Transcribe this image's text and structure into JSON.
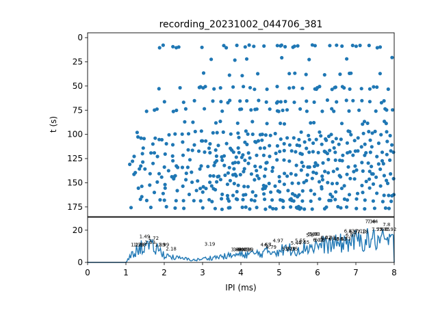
{
  "chart_data": [
    {
      "type": "scatter",
      "title": "recording_20231002_044706_381",
      "ylabel": "t (s)",
      "xlim": [
        0,
        8
      ],
      "ylim": [
        185,
        -5
      ],
      "y_inverted": true,
      "yticks": [
        0,
        25,
        50,
        75,
        100,
        125,
        150,
        175
      ],
      "color": "#1f77b4",
      "marker": "filled circle",
      "bands": [
        {
          "t": 9,
          "x_from": 1.35,
          "x_to": 8.0,
          "density": 0.18
        },
        {
          "t": 22,
          "x_from": 1.4,
          "x_to": 8.0,
          "density": 0.06
        },
        {
          "t": 38,
          "x_from": 1.9,
          "x_to": 8.0,
          "density": 0.08
        },
        {
          "t": 52,
          "x_from": 1.4,
          "x_to": 8.0,
          "density": 0.22
        },
        {
          "t": 66,
          "x_from": 1.5,
          "x_to": 8.0,
          "density": 0.22
        },
        {
          "t": 75,
          "x_from": 1.4,
          "x_to": 8.0,
          "density": 0.16
        },
        {
          "t": 88,
          "x_from": 1.4,
          "x_to": 8.0,
          "density": 0.1
        },
        {
          "t": 101,
          "x_from": 1.2,
          "x_to": 8.0,
          "density": 0.4
        },
        {
          "t": 110,
          "x_from": 1.1,
          "x_to": 8.0,
          "density": 0.35
        },
        {
          "t": 120,
          "x_from": 1.1,
          "x_to": 8.0,
          "density": 0.4
        },
        {
          "t": 130,
          "x_from": 1.0,
          "x_to": 8.0,
          "density": 0.42
        },
        {
          "t": 140,
          "x_from": 1.0,
          "x_to": 8.0,
          "density": 0.4
        },
        {
          "t": 150,
          "x_from": 1.1,
          "x_to": 8.0,
          "density": 0.38
        },
        {
          "t": 160,
          "x_from": 1.1,
          "x_to": 8.0,
          "density": 0.34
        },
        {
          "t": 168,
          "x_from": 1.1,
          "x_to": 8.0,
          "density": 0.3
        },
        {
          "t": 176,
          "x_from": 1.1,
          "x_to": 8.0,
          "density": 0.22
        }
      ]
    },
    {
      "type": "line",
      "xlabel": "IPI (ms)",
      "xlim": [
        0,
        8
      ],
      "ylim": [
        0,
        28
      ],
      "xticks": [
        0,
        1,
        2,
        3,
        4,
        5,
        6,
        7,
        8
      ],
      "yticks": [
        0,
        20
      ],
      "color": "#1f77b4",
      "envelope": [
        {
          "x": 0,
          "y": 0
        },
        {
          "x": 1.0,
          "y": 0
        },
        {
          "x": 1.05,
          "y": 2
        },
        {
          "x": 1.2,
          "y": 6
        },
        {
          "x": 1.45,
          "y": 11
        },
        {
          "x": 1.6,
          "y": 10
        },
        {
          "x": 1.8,
          "y": 9
        },
        {
          "x": 2.0,
          "y": 5
        },
        {
          "x": 2.3,
          "y": 3
        },
        {
          "x": 2.8,
          "y": 1.5
        },
        {
          "x": 3.2,
          "y": 3
        },
        {
          "x": 3.6,
          "y": 4
        },
        {
          "x": 4.0,
          "y": 5
        },
        {
          "x": 4.5,
          "y": 6
        },
        {
          "x": 5.0,
          "y": 8
        },
        {
          "x": 5.5,
          "y": 9
        },
        {
          "x": 6.0,
          "y": 11
        },
        {
          "x": 6.5,
          "y": 12
        },
        {
          "x": 7.0,
          "y": 14
        },
        {
          "x": 7.4,
          "y": 15
        },
        {
          "x": 7.8,
          "y": 14
        },
        {
          "x": 7.99,
          "y": 13
        },
        {
          "x": 8.0,
          "y": 1
        }
      ],
      "peaks": [
        {
          "x": 1.49,
          "y": 15,
          "label": "1.49"
        },
        {
          "x": 1.72,
          "y": 14,
          "label": "1.72"
        },
        {
          "x": 1.63,
          "y": 11.5,
          "label": "1.63"
        },
        {
          "x": 1.27,
          "y": 10,
          "label": "1.27"
        },
        {
          "x": 1.33,
          "y": 10,
          "label": "1.33"
        },
        {
          "x": 1.38,
          "y": 10,
          "label": "1.38"
        },
        {
          "x": 1.89,
          "y": 10,
          "label": "1.89"
        },
        {
          "x": 1.99,
          "y": 10,
          "label": "1.99"
        },
        {
          "x": 2.18,
          "y": 7.5,
          "label": "2.18"
        },
        {
          "x": 3.19,
          "y": 10.5,
          "label": "3.19"
        },
        {
          "x": 3.88,
          "y": 7,
          "label": "3.88"
        },
        {
          "x": 3.94,
          "y": 7,
          "label": "3.94"
        },
        {
          "x": 4.02,
          "y": 7,
          "label": "4.02"
        },
        {
          "x": 4.08,
          "y": 7,
          "label": "4.08"
        },
        {
          "x": 4.14,
          "y": 7,
          "label": "4.14"
        },
        {
          "x": 4.19,
          "y": 7,
          "label": "4.19"
        },
        {
          "x": 4.65,
          "y": 10,
          "label": "4.65"
        },
        {
          "x": 4.7,
          "y": 10,
          "label": "4.7"
        },
        {
          "x": 4.79,
          "y": 8.5,
          "label": "4.79"
        },
        {
          "x": 4.97,
          "y": 12.5,
          "label": "4.97"
        },
        {
          "x": 5.21,
          "y": 7.5,
          "label": "5.21"
        },
        {
          "x": 5.29,
          "y": 7.5,
          "label": "5.29"
        },
        {
          "x": 5.35,
          "y": 7.5,
          "label": "5.35"
        },
        {
          "x": 5.44,
          "y": 11,
          "label": "5.44"
        },
        {
          "x": 5.55,
          "y": 12.5,
          "label": "5.55"
        },
        {
          "x": 5.65,
          "y": 11.5,
          "label": "5.65"
        },
        {
          "x": 5.8,
          "y": 16,
          "label": "5.8"
        },
        {
          "x": 5.88,
          "y": 16.5,
          "label": "5.88"
        },
        {
          "x": 5.93,
          "y": 16.5,
          "label": "5.93"
        },
        {
          "x": 6.02,
          "y": 13,
          "label": "6.02"
        },
        {
          "x": 6.06,
          "y": 13,
          "label": "6.06"
        },
        {
          "x": 6.22,
          "y": 14.5,
          "label": "6.22"
        },
        {
          "x": 6.33,
          "y": 14.5,
          "label": "6.33"
        },
        {
          "x": 6.43,
          "y": 13.5,
          "label": "6.43"
        },
        {
          "x": 6.63,
          "y": 13.5,
          "label": "6.63"
        },
        {
          "x": 6.73,
          "y": 13.5,
          "label": "6.73"
        },
        {
          "x": 6.87,
          "y": 16,
          "label": "6.87"
        },
        {
          "x": 6.83,
          "y": 18.5,
          "label": "6.83"
        },
        {
          "x": 6.97,
          "y": 18,
          "label": "6.97"
        },
        {
          "x": 7.12,
          "y": 18.5,
          "label": "7.12"
        },
        {
          "x": 7.18,
          "y": 18,
          "label": "7.18"
        },
        {
          "x": 7.38,
          "y": 24.5,
          "label": "7.38"
        },
        {
          "x": 7.44,
          "y": 24.5,
          "label": "7.44"
        },
        {
          "x": 7.55,
          "y": 19.5,
          "label": "7.55"
        },
        {
          "x": 7.68,
          "y": 19.5,
          "label": "7.68"
        },
        {
          "x": 7.75,
          "y": 19.5,
          "label": "7.75"
        },
        {
          "x": 7.8,
          "y": 22.5,
          "label": "7.8"
        },
        {
          "x": 7.92,
          "y": 19.5,
          "label": "7.92"
        }
      ]
    }
  ]
}
